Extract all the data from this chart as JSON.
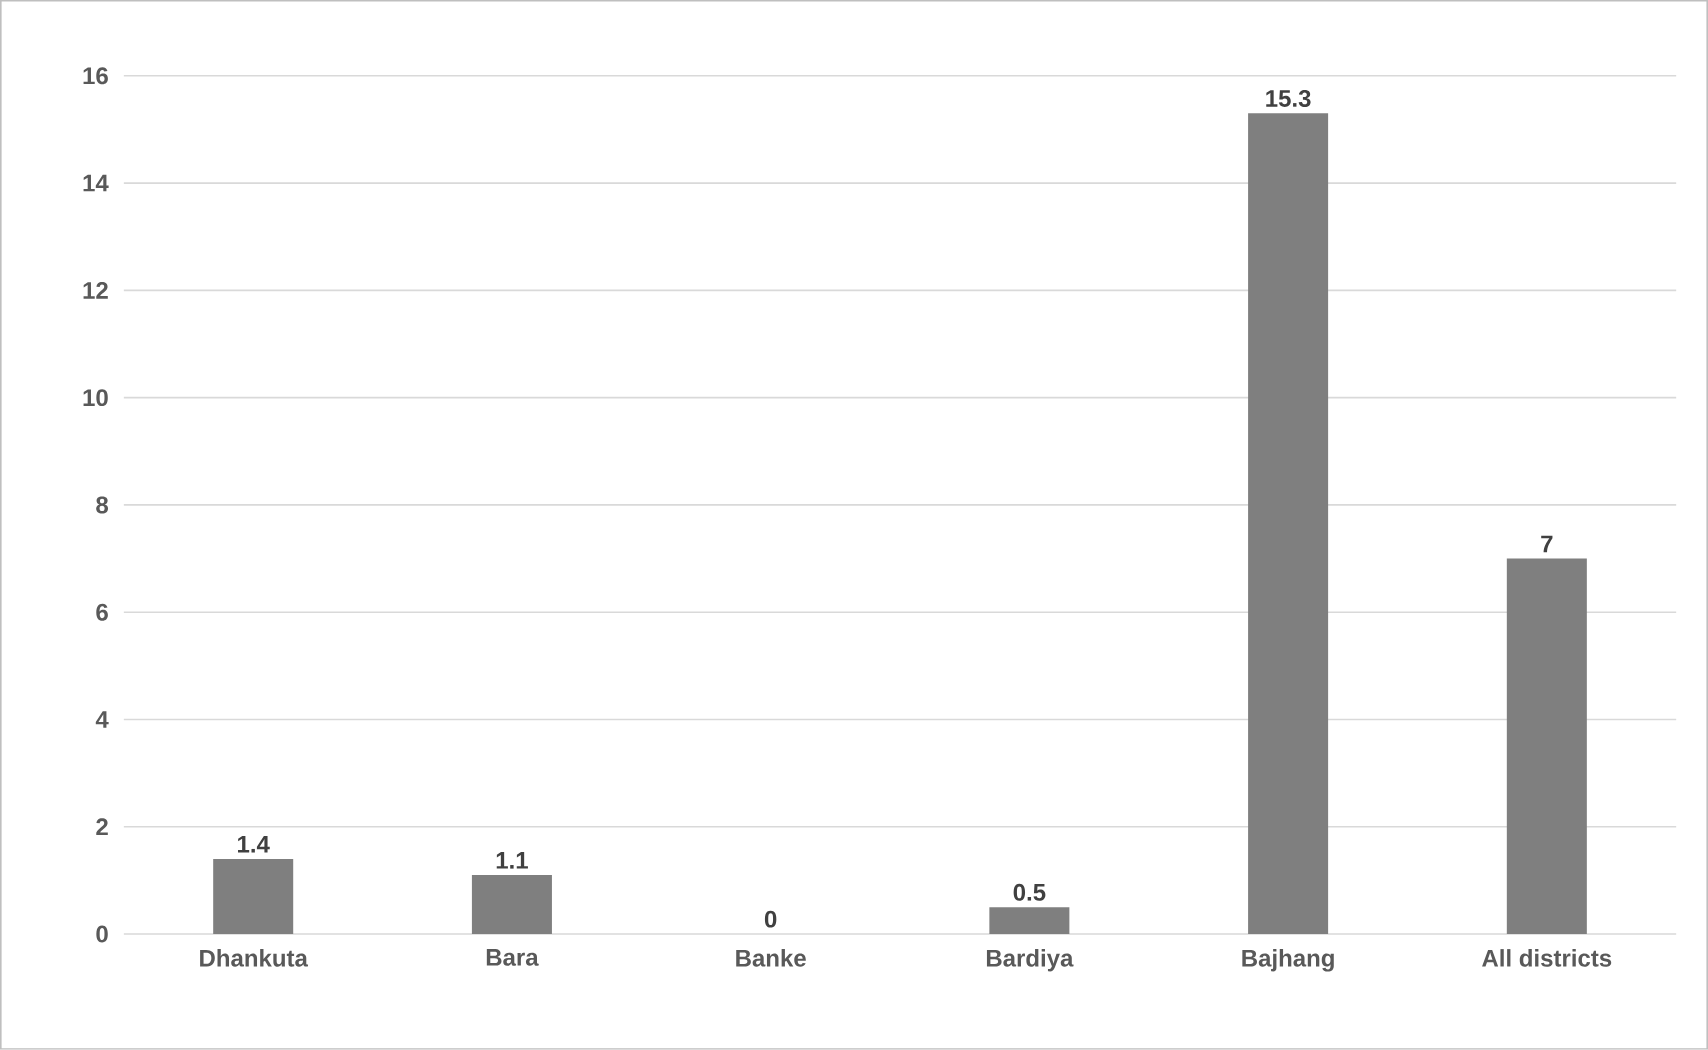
{
  "chart_data": {
    "type": "bar",
    "categories": [
      "Dhankuta",
      "Bara",
      "Banke",
      "Bardiya",
      "Bajhang",
      "All districts"
    ],
    "values": [
      1.4,
      1.1,
      0,
      0.5,
      15.3,
      7
    ],
    "color": "#7f7f7f",
    "ylim": [
      0,
      16
    ],
    "yticks": [
      0,
      2,
      4,
      6,
      8,
      10,
      12,
      14,
      16
    ],
    "grid": "y",
    "data_labels": true
  }
}
